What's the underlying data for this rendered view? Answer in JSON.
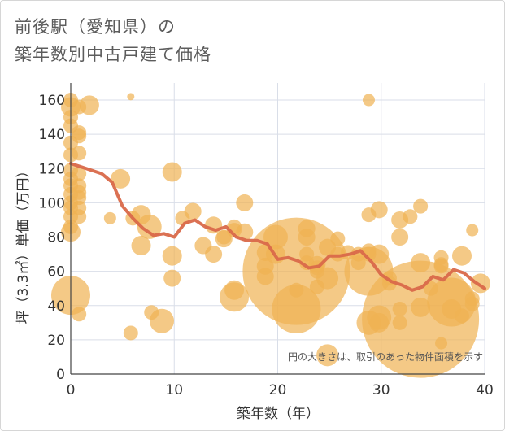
{
  "title_line1": "前後駅（愛知県）の",
  "title_line2": "築年数別中古戸建て価格",
  "chart_data": {
    "type": "scatter",
    "title": "前後駅（愛知県）の築年数別中古戸建て価格",
    "xlabel": "築年数（年）",
    "ylabel": "坪（3.3㎡）単価（万円）",
    "xlim": [
      0,
      40
    ],
    "ylim": [
      0,
      170
    ],
    "xticks": [
      0,
      10,
      20,
      30,
      40
    ],
    "yticks": [
      0,
      20,
      40,
      60,
      80,
      100,
      120,
      140,
      160
    ],
    "grid": true,
    "note": "円の大きさは、取引のあった物件面積を示す",
    "colors": {
      "bubble": "#f0b253",
      "line": "#d9694a",
      "grid": "#d9dee8"
    },
    "trend_line": {
      "name": "",
      "x": [
        0,
        1,
        2,
        3,
        4,
        5,
        6,
        7,
        8,
        9,
        10,
        11,
        12,
        13,
        14,
        15,
        16,
        17,
        18,
        19,
        20,
        21,
        22,
        23,
        24,
        25,
        26,
        27,
        28,
        29,
        30,
        31,
        32,
        33,
        34,
        35,
        36,
        37,
        38,
        39,
        40
      ],
      "y": [
        123,
        121,
        119,
        117,
        112,
        98,
        91,
        85,
        81,
        82,
        80,
        88,
        90,
        86,
        84,
        86,
        80,
        78,
        78,
        76,
        67,
        68,
        66,
        62,
        63,
        69,
        69,
        70,
        72,
        66,
        58,
        54,
        52,
        49,
        51,
        57,
        55,
        61,
        59,
        54,
        50
      ]
    },
    "points": [
      {
        "x": 0,
        "y": 160,
        "s": 3
      },
      {
        "x": 0,
        "y": 156,
        "s": 4
      },
      {
        "x": 0,
        "y": 150,
        "s": 3
      },
      {
        "x": 0,
        "y": 145,
        "s": 3
      },
      {
        "x": 0,
        "y": 135,
        "s": 3
      },
      {
        "x": 0,
        "y": 128,
        "s": 3
      },
      {
        "x": 0,
        "y": 119,
        "s": 3
      },
      {
        "x": 0,
        "y": 114,
        "s": 3
      },
      {
        "x": 0,
        "y": 110,
        "s": 3
      },
      {
        "x": 0,
        "y": 105,
        "s": 3
      },
      {
        "x": 0,
        "y": 100,
        "s": 3
      },
      {
        "x": 0,
        "y": 97,
        "s": 3
      },
      {
        "x": 0,
        "y": 92,
        "s": 3
      },
      {
        "x": 0,
        "y": 86,
        "s": 3
      },
      {
        "x": 0,
        "y": 83,
        "s": 4
      },
      {
        "x": 0,
        "y": 46,
        "s": 8
      },
      {
        "x": 0.8,
        "y": 156,
        "s": 3
      },
      {
        "x": 0.8,
        "y": 141,
        "s": 3
      },
      {
        "x": 0.8,
        "y": 139,
        "s": 3
      },
      {
        "x": 0.8,
        "y": 129,
        "s": 3
      },
      {
        "x": 0.8,
        "y": 117,
        "s": 3
      },
      {
        "x": 0.8,
        "y": 110,
        "s": 3
      },
      {
        "x": 0.8,
        "y": 106,
        "s": 3
      },
      {
        "x": 0.8,
        "y": 103,
        "s": 3
      },
      {
        "x": 0.8,
        "y": 97,
        "s": 3
      },
      {
        "x": 0.8,
        "y": 92,
        "s": 3
      },
      {
        "x": 0.8,
        "y": 35,
        "s": 3
      },
      {
        "x": 1.8,
        "y": 157,
        "s": 4
      },
      {
        "x": 3.8,
        "y": 91,
        "s": 2.5
      },
      {
        "x": 4.8,
        "y": 114,
        "s": 4
      },
      {
        "x": 5.8,
        "y": 162,
        "s": 1.5
      },
      {
        "x": 5.8,
        "y": 24,
        "s": 3
      },
      {
        "x": 6,
        "y": 91,
        "s": 3
      },
      {
        "x": 6.8,
        "y": 93,
        "s": 4
      },
      {
        "x": 6.8,
        "y": 75,
        "s": 4
      },
      {
        "x": 7.6,
        "y": 86,
        "s": 5
      },
      {
        "x": 7.8,
        "y": 36,
        "s": 3
      },
      {
        "x": 8.8,
        "y": 31,
        "s": 5
      },
      {
        "x": 9.8,
        "y": 118,
        "s": 4
      },
      {
        "x": 9.8,
        "y": 69,
        "s": 4
      },
      {
        "x": 9.8,
        "y": 56,
        "s": 3.5
      },
      {
        "x": 10.8,
        "y": 91,
        "s": 3
      },
      {
        "x": 11.8,
        "y": 95,
        "s": 3.5
      },
      {
        "x": 12.8,
        "y": 75,
        "s": 3.5
      },
      {
        "x": 13.8,
        "y": 87,
        "s": 3.5
      },
      {
        "x": 13.8,
        "y": 70,
        "s": 3.5
      },
      {
        "x": 14.8,
        "y": 79,
        "s": 3.5
      },
      {
        "x": 14.8,
        "y": 80,
        "s": 3
      },
      {
        "x": 15.8,
        "y": 86,
        "s": 3
      },
      {
        "x": 15.8,
        "y": 84,
        "s": 3
      },
      {
        "x": 15.8,
        "y": 49,
        "s": 4
      },
      {
        "x": 15.8,
        "y": 45,
        "s": 6
      },
      {
        "x": 16.8,
        "y": 100,
        "s": 3.5
      },
      {
        "x": 16.8,
        "y": 83,
        "s": 3.5
      },
      {
        "x": 18.8,
        "y": 71,
        "s": 3.5
      },
      {
        "x": 18.8,
        "y": 63,
        "s": 3.5
      },
      {
        "x": 18.8,
        "y": 57,
        "s": 3.5
      },
      {
        "x": 19.8,
        "y": 80,
        "s": 5
      },
      {
        "x": 19.8,
        "y": 70,
        "s": 4
      },
      {
        "x": 21.8,
        "y": 60,
        "s": 22
      },
      {
        "x": 21.8,
        "y": 49,
        "s": 3
      },
      {
        "x": 21.8,
        "y": 38,
        "s": 10
      },
      {
        "x": 22.8,
        "y": 85,
        "s": 3.5
      },
      {
        "x": 22.8,
        "y": 80,
        "s": 3.5
      },
      {
        "x": 22.8,
        "y": 70,
        "s": 3
      },
      {
        "x": 22.8,
        "y": 65,
        "s": 3
      },
      {
        "x": 23.8,
        "y": 60,
        "s": 3
      },
      {
        "x": 23.8,
        "y": 51,
        "s": 3
      },
      {
        "x": 23.8,
        "y": 64,
        "s": 3.5
      },
      {
        "x": 23.8,
        "y": 62,
        "s": 3
      },
      {
        "x": 24.8,
        "y": 74,
        "s": 3.5
      },
      {
        "x": 24.8,
        "y": 56,
        "s": 4.5
      },
      {
        "x": 24.8,
        "y": 11,
        "s": 4.5
      },
      {
        "x": 25.8,
        "y": 79,
        "s": 3
      },
      {
        "x": 25.8,
        "y": 70,
        "s": 3
      },
      {
        "x": 26.8,
        "y": 71,
        "s": 3
      },
      {
        "x": 27.8,
        "y": 65,
        "s": 3
      },
      {
        "x": 27.8,
        "y": 70,
        "s": 3
      },
      {
        "x": 28.8,
        "y": 160,
        "s": 2.5
      },
      {
        "x": 28.8,
        "y": 93,
        "s": 3
      },
      {
        "x": 28.8,
        "y": 72,
        "s": 3
      },
      {
        "x": 28.8,
        "y": 70,
        "s": 3
      },
      {
        "x": 28.8,
        "y": 60,
        "s": 10
      },
      {
        "x": 28.8,
        "y": 30,
        "s": 5
      },
      {
        "x": 29.8,
        "y": 96,
        "s": 3.5
      },
      {
        "x": 29.8,
        "y": 70,
        "s": 4
      },
      {
        "x": 29.8,
        "y": 33,
        "s": 5
      },
      {
        "x": 29.8,
        "y": 30,
        "s": 4
      },
      {
        "x": 30.8,
        "y": 56,
        "s": 3
      },
      {
        "x": 30.8,
        "y": 53,
        "s": 3
      },
      {
        "x": 31.8,
        "y": 90,
        "s": 3.5
      },
      {
        "x": 31.8,
        "y": 80,
        "s": 3.5
      },
      {
        "x": 31.8,
        "y": 38,
        "s": 3
      },
      {
        "x": 31.8,
        "y": 30,
        "s": 3
      },
      {
        "x": 32.8,
        "y": 92,
        "s": 3
      },
      {
        "x": 33.8,
        "y": 98,
        "s": 3
      },
      {
        "x": 33.8,
        "y": 65,
        "s": 4
      },
      {
        "x": 33.8,
        "y": 39,
        "s": 4
      },
      {
        "x": 33.8,
        "y": 32,
        "s": 24
      },
      {
        "x": 34.8,
        "y": 50,
        "s": 3
      },
      {
        "x": 35.8,
        "y": 68,
        "s": 3
      },
      {
        "x": 35.8,
        "y": 64,
        "s": 3
      },
      {
        "x": 35.8,
        "y": 63,
        "s": 3
      },
      {
        "x": 35.8,
        "y": 18,
        "s": 2.5
      },
      {
        "x": 36.8,
        "y": 42,
        "s": 10
      },
      {
        "x": 36.8,
        "y": 38,
        "s": 4
      },
      {
        "x": 37.8,
        "y": 69,
        "s": 4
      },
      {
        "x": 37.8,
        "y": 34,
        "s": 3
      },
      {
        "x": 38.8,
        "y": 84,
        "s": 2.5
      },
      {
        "x": 38.8,
        "y": 44,
        "s": 3
      },
      {
        "x": 38.8,
        "y": 41,
        "s": 3
      },
      {
        "x": 39.6,
        "y": 53,
        "s": 4
      }
    ]
  }
}
